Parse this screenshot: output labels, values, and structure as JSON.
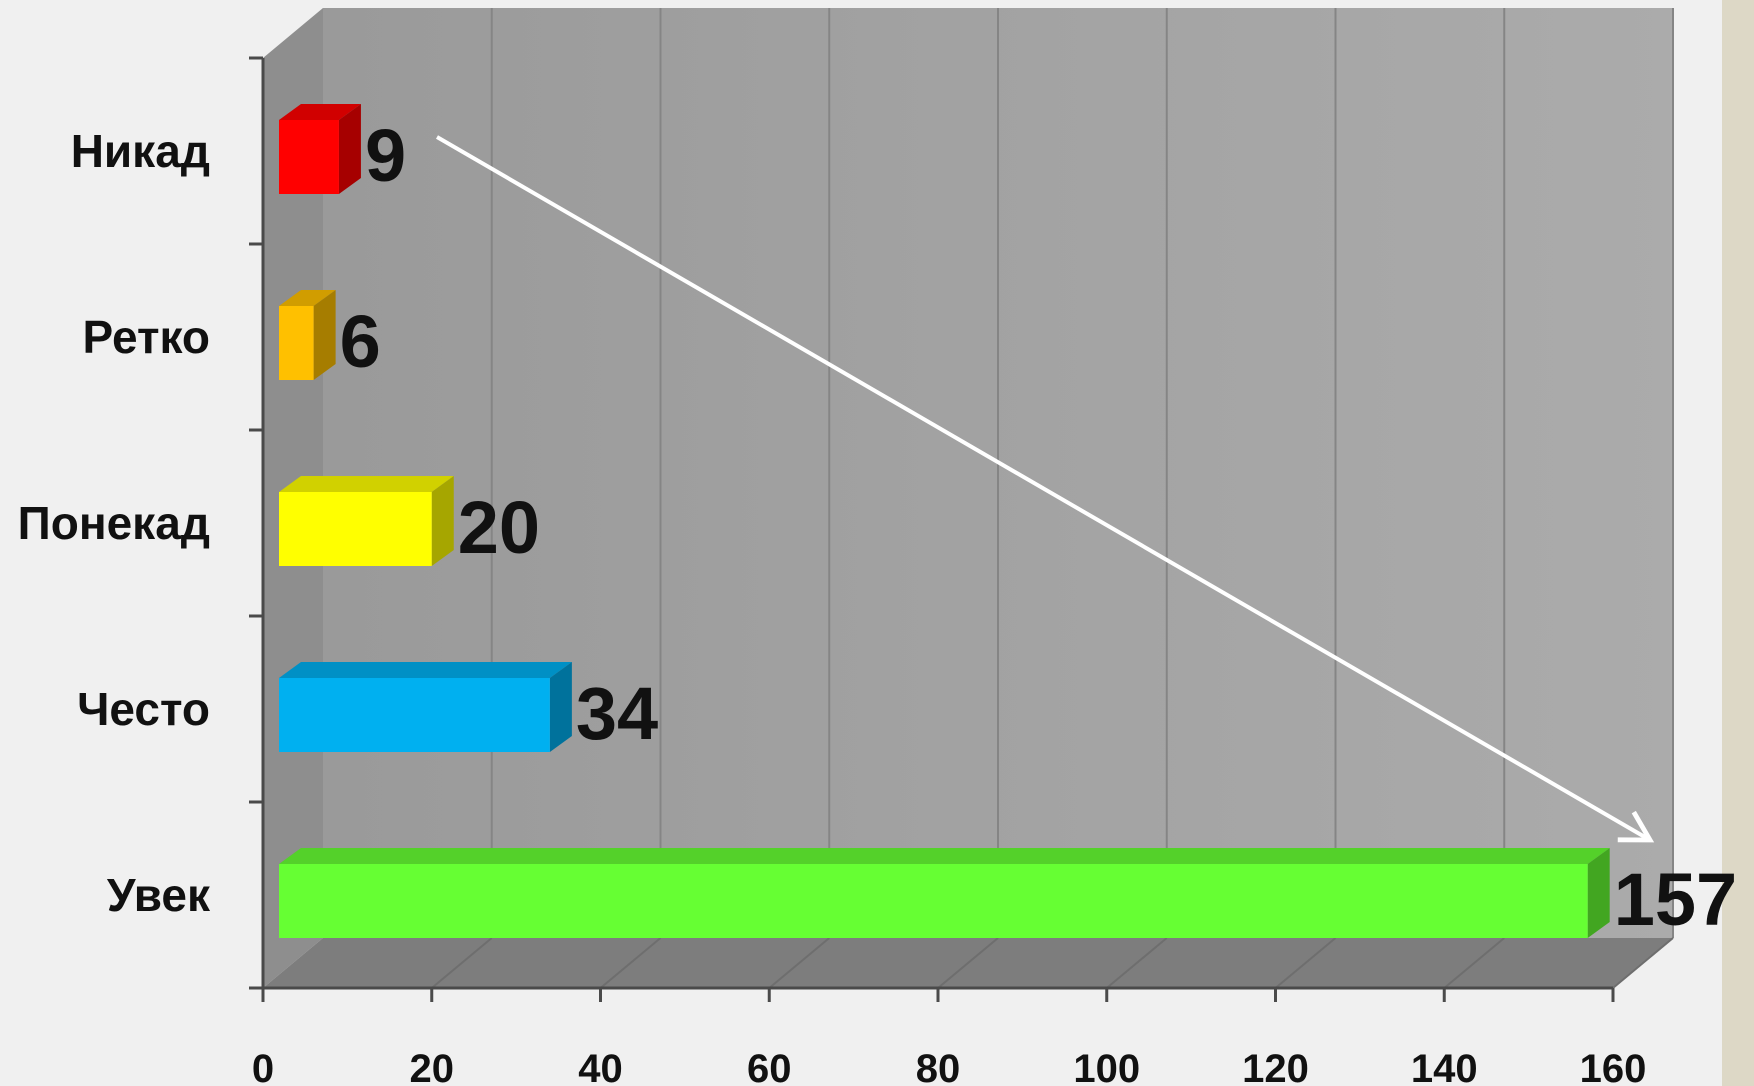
{
  "chart_data": {
    "type": "bar",
    "orientation": "horizontal",
    "categories": [
      "Никад",
      "Ретко",
      "Понекад",
      "Често",
      "Увек"
    ],
    "values": [
      9,
      6,
      20,
      34,
      157
    ],
    "value_labels": [
      "9",
      "6",
      "20",
      "34",
      "157"
    ],
    "colors": [
      "#ff0000",
      "#ffc000",
      "#ffff00",
      "#00b0f0",
      "#66ff33"
    ],
    "xlim": [
      0,
      160
    ],
    "x_ticks": [
      0,
      20,
      40,
      60,
      80,
      100,
      120,
      140,
      160
    ],
    "x_tick_labels": [
      "0",
      "20",
      "40",
      "60",
      "80",
      "100",
      "120",
      "140",
      "160"
    ],
    "grid": true,
    "legend": "none",
    "annotation": "arrow from smallest to largest bar",
    "style": "3d"
  }
}
